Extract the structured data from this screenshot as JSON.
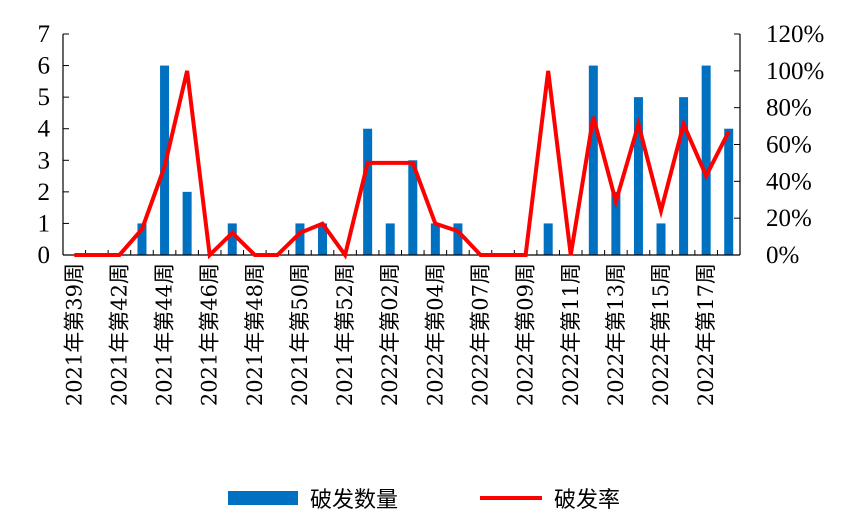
{
  "chart_data": {
    "type": "bar+line",
    "categories": [
      "2021年第39周",
      "",
      "2021年第42周",
      "",
      "2021年第44周",
      "",
      "2021年第46周",
      "",
      "2021年第48周",
      "",
      "2021年第50周",
      "",
      "2021年第52周",
      "",
      "2022年第02周",
      "",
      "2022年第04周",
      "",
      "2022年第07周",
      "",
      "2022年第09周",
      "",
      "2022年第11周",
      "",
      "2022年第13周",
      "",
      "2022年第15周",
      "",
      "2022年第17周",
      ""
    ],
    "series": [
      {
        "name": "破发数量",
        "type": "bar",
        "axis": "left",
        "color": "#0070C0",
        "values": [
          0,
          0,
          0,
          1,
          6,
          2,
          0,
          1,
          0,
          0,
          1,
          1,
          0,
          4,
          1,
          3,
          1,
          1,
          0,
          0,
          0,
          1,
          0,
          6,
          2,
          5,
          1,
          5,
          6,
          4
        ]
      },
      {
        "name": "破发率",
        "type": "line",
        "axis": "right",
        "color": "#FF0000",
        "values": [
          0,
          0,
          0,
          14,
          48,
          100,
          0,
          12,
          0,
          0,
          12,
          17,
          0,
          50,
          50,
          50,
          17,
          13,
          0,
          0,
          0,
          100,
          0,
          75,
          29,
          71,
          24,
          71,
          43,
          67
        ]
      }
    ],
    "left_axis": {
      "ylim": [
        0,
        7
      ],
      "ticks": [
        "0",
        "1",
        "2",
        "3",
        "4",
        "5",
        "6",
        "7"
      ]
    },
    "right_axis": {
      "ylim": [
        0,
        120
      ],
      "ticks": [
        "0%",
        "20%",
        "40%",
        "60%",
        "80%",
        "100%",
        "120%"
      ]
    },
    "grid": false,
    "legend": "bottom"
  }
}
